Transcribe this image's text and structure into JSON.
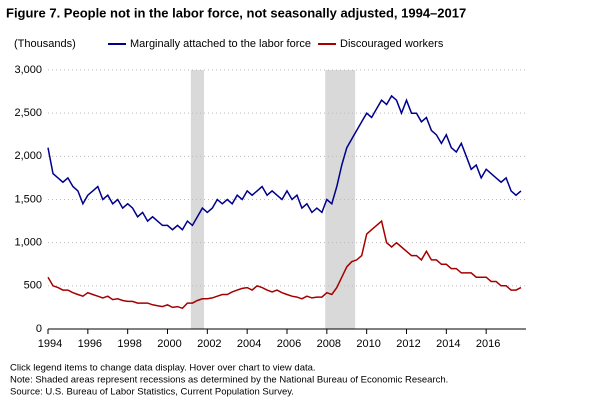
{
  "chart_data": {
    "type": "line",
    "title": "Figure 7. People not in the labor force, not seasonally adjusted, 1994–2017",
    "y_label": "(Thousands)",
    "notes": [
      "Click legend items to change data display. Hover over chart to view data.",
      "Note: Shaded areas represent recessions as determined by the National Bureau of Economic Research.",
      "Source: U.S. Bureau of Labor Statistics, Current Population Survey."
    ],
    "x": [
      1994.0,
      1994.25,
      1994.5,
      1994.75,
      1995.0,
      1995.25,
      1995.5,
      1995.75,
      1996.0,
      1996.25,
      1996.5,
      1996.75,
      1997.0,
      1997.25,
      1997.5,
      1997.75,
      1998.0,
      1998.25,
      1998.5,
      1998.75,
      1999.0,
      1999.25,
      1999.5,
      1999.75,
      2000.0,
      2000.25,
      2000.5,
      2000.75,
      2001.0,
      2001.25,
      2001.5,
      2001.75,
      2002.0,
      2002.25,
      2002.5,
      2002.75,
      2003.0,
      2003.25,
      2003.5,
      2003.75,
      2004.0,
      2004.25,
      2004.5,
      2004.75,
      2005.0,
      2005.25,
      2005.5,
      2005.75,
      2006.0,
      2006.25,
      2006.5,
      2006.75,
      2007.0,
      2007.25,
      2007.5,
      2007.75,
      2008.0,
      2008.25,
      2008.5,
      2008.75,
      2009.0,
      2009.25,
      2009.5,
      2009.75,
      2010.0,
      2010.25,
      2010.5,
      2010.75,
      2011.0,
      2011.25,
      2011.5,
      2011.75,
      2012.0,
      2012.25,
      2012.5,
      2012.75,
      2013.0,
      2013.25,
      2013.5,
      2013.75,
      2014.0,
      2014.25,
      2014.5,
      2014.75,
      2015.0,
      2015.25,
      2015.5,
      2015.75,
      2016.0,
      2016.25,
      2016.5,
      2016.75,
      2017.0,
      2017.25,
      2017.5,
      2017.75
    ],
    "series": [
      {
        "name": "Marginally attached to the labor force",
        "color": "#00008b",
        "values": [
          2100,
          1800,
          1750,
          1700,
          1750,
          1650,
          1600,
          1450,
          1550,
          1600,
          1650,
          1500,
          1550,
          1450,
          1500,
          1400,
          1450,
          1400,
          1300,
          1350,
          1250,
          1300,
          1250,
          1200,
          1200,
          1150,
          1200,
          1150,
          1250,
          1200,
          1300,
          1400,
          1350,
          1400,
          1500,
          1450,
          1500,
          1450,
          1550,
          1500,
          1600,
          1550,
          1600,
          1650,
          1550,
          1600,
          1550,
          1500,
          1600,
          1500,
          1550,
          1400,
          1450,
          1350,
          1400,
          1350,
          1500,
          1450,
          1650,
          1900,
          2100,
          2200,
          2300,
          2400,
          2500,
          2450,
          2550,
          2650,
          2600,
          2700,
          2650,
          2500,
          2650,
          2500,
          2500,
          2400,
          2450,
          2300,
          2250,
          2150,
          2250,
          2100,
          2050,
          2150,
          2000,
          1850,
          1900,
          1750,
          1850,
          1800,
          1750,
          1700,
          1750,
          1600,
          1550,
          1600
        ]
      },
      {
        "name": "Discouraged workers",
        "color": "#a50000",
        "values": [
          600,
          500,
          480,
          450,
          450,
          420,
          400,
          380,
          420,
          400,
          380,
          360,
          380,
          340,
          350,
          330,
          320,
          320,
          300,
          300,
          300,
          280,
          270,
          260,
          280,
          250,
          260,
          240,
          300,
          300,
          330,
          350,
          350,
          360,
          380,
          400,
          400,
          430,
          450,
          470,
          480,
          450,
          500,
          480,
          450,
          430,
          450,
          420,
          400,
          380,
          370,
          350,
          380,
          360,
          370,
          370,
          420,
          400,
          480,
          600,
          720,
          780,
          800,
          850,
          1100,
          1150,
          1200,
          1250,
          1000,
          950,
          1000,
          950,
          900,
          850,
          850,
          800,
          900,
          800,
          800,
          750,
          750,
          700,
          700,
          650,
          650,
          650,
          600,
          600,
          600,
          550,
          550,
          500,
          500,
          450,
          450,
          480
        ]
      }
    ],
    "recessions": [
      [
        2001.17,
        2001.83
      ],
      [
        2007.92,
        2009.42
      ]
    ],
    "recession_color": "#d9d9d9",
    "xlim": [
      1994,
      2018
    ],
    "xticks": [
      1994,
      1996,
      1998,
      2000,
      2002,
      2004,
      2006,
      2008,
      2010,
      2012,
      2014,
      2016
    ],
    "ylim": [
      0,
      3000
    ],
    "yticks": [
      0,
      500,
      {
        "value": 1000,
        "label": "1,000"
      },
      {
        "value": 1500,
        "label": "1,500"
      },
      {
        "value": 2000,
        "label": "2,000"
      },
      {
        "value": 2500,
        "label": "2,500"
      },
      {
        "value": 3000,
        "label": "3,000"
      }
    ],
    "grid": true
  }
}
